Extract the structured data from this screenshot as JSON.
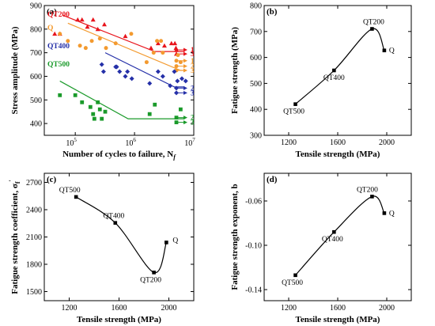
{
  "chart_data": [
    {
      "id": "a",
      "type": "scatter",
      "panel_label": "(a)",
      "xlabel": "Number of cycles to failure, N",
      "xlabel_sub": "f",
      "ylabel": "Stress amplitude (MPa)",
      "xscale": "log",
      "xlim": [
        30000,
        10000000
      ],
      "ylim": [
        350,
        900
      ],
      "xticks": [
        100000,
        1000000,
        10000000
      ],
      "xtick_labels": [
        {
          "base": "10",
          "exp": "5"
        },
        {
          "base": "10",
          "exp": "6"
        },
        {
          "base": "10",
          "exp": "7"
        }
      ],
      "yticks": [
        400,
        500,
        600,
        700,
        800,
        900
      ],
      "series": [
        {
          "name": "QT200",
          "color": "#e8141c",
          "marker": "triangle",
          "points": [
            [
              45000,
              780
            ],
            [
              55000,
              780
            ],
            [
              110000,
              840
            ],
            [
              130000,
              840
            ],
            [
              160000,
              810
            ],
            [
              200000,
              840
            ],
            [
              240000,
              800
            ],
            [
              310000,
              820
            ],
            [
              700000,
              770
            ],
            [
              2500000,
              740
            ],
            [
              3200000,
              730
            ],
            [
              4200000,
              740
            ],
            [
              4800000,
              740
            ],
            [
              5000000,
              720
            ],
            [
              1900000,
              720
            ]
          ],
          "fit": [
            [
              60000,
              860
            ],
            [
              2200000,
              705
            ],
            [
              7000000,
              705
            ]
          ],
          "runouts": [
            {
              "y": 712,
              "label": "1"
            },
            {
              "y": 695,
              "label": "3"
            }
          ]
        },
        {
          "name": "Q",
          "color": "#f39a2f",
          "marker": "circle",
          "points": [
            [
              55000,
              780
            ],
            [
              75000,
              750
            ],
            [
              120000,
              730
            ],
            [
              150000,
              720
            ],
            [
              190000,
              750
            ],
            [
              260000,
              760
            ],
            [
              330000,
              720
            ],
            [
              480000,
              740
            ],
            [
              880000,
              780
            ],
            [
              1600000,
              660
            ],
            [
              2100000,
              700
            ],
            [
              2400000,
              750
            ],
            [
              2800000,
              750
            ],
            [
              3000000,
              700
            ],
            [
              5400000,
              690
            ],
            [
              6000000,
              660
            ]
          ],
          "fit": [
            [
              75000,
              825
            ],
            [
              6000000,
              625
            ],
            [
              7000000,
              625
            ]
          ],
          "runouts": [
            {
              "y": 666,
              "label": "1"
            },
            {
              "y": 643,
              "label": "2"
            },
            {
              "y": 625,
              "label": "3"
            }
          ]
        },
        {
          "name": "QT400",
          "color": "#2530a8",
          "marker": "diamond",
          "points": [
            [
              280000,
              650
            ],
            [
              300000,
              620
            ],
            [
              480000,
              640
            ],
            [
              500000,
              640
            ],
            [
              560000,
              620
            ],
            [
              700000,
              600
            ],
            [
              760000,
              620
            ],
            [
              900000,
              590
            ],
            [
              1800000,
              570
            ],
            [
              2500000,
              620
            ],
            [
              3000000,
              600
            ],
            [
              4000000,
              560
            ],
            [
              4700000,
              620
            ],
            [
              5300000,
              580
            ],
            [
              6300000,
              590
            ],
            [
              7300000,
              580
            ]
          ],
          "fit": [
            [
              320000,
              700
            ],
            [
              4700000,
              555
            ],
            [
              7000000,
              555
            ]
          ],
          "runouts": [
            {
              "y": 550,
              "label": "2"
            },
            {
              "y": 530,
              "label": "3"
            }
          ]
        },
        {
          "name": "QT500",
          "color": "#1a9a2a",
          "marker": "square",
          "points": [
            [
              55000,
              520
            ],
            [
              100000,
              520
            ],
            [
              130000,
              490
            ],
            [
              180000,
              470
            ],
            [
              200000,
              440
            ],
            [
              210000,
              420
            ],
            [
              240000,
              490
            ],
            [
              260000,
              460
            ],
            [
              280000,
              420
            ],
            [
              320000,
              450
            ],
            [
              1800000,
              440
            ],
            [
              2200000,
              480
            ],
            [
              6000000,
              460
            ]
          ],
          "fit": [
            [
              55000,
              580
            ],
            [
              780000,
              420
            ],
            [
              7000000,
              420
            ]
          ],
          "runouts": [
            {
              "y": 425,
              "label": "2"
            },
            {
              "y": 405,
              "label": "3"
            }
          ]
        }
      ]
    },
    {
      "id": "b",
      "type": "line",
      "panel_label": "(b)",
      "xlabel": "Tensile strength (MPa)",
      "ylabel": "Fatigue strength (MPa)",
      "xlim": [
        1000,
        2200
      ],
      "ylim": [
        300,
        800
      ],
      "xticks": [
        1200,
        1600,
        2000
      ],
      "yticks": [
        300,
        400,
        500,
        600,
        700,
        800
      ],
      "points": [
        {
          "label": "QT500",
          "x": 1255,
          "y": 420
        },
        {
          "label": "QT400",
          "x": 1570,
          "y": 550
        },
        {
          "label": "QT200",
          "x": 1880,
          "y": 710
        },
        {
          "label": "Q",
          "x": 1980,
          "y": 627
        }
      ]
    },
    {
      "id": "c",
      "type": "line",
      "panel_label": "(c)",
      "xlabel": "Tensile strength (MPa)",
      "ylabel": "Fatigue strength coefficient, σ",
      "ylabel_sub": "f",
      "ylabel_prime": "′",
      "xlim": [
        1000,
        2200
      ],
      "ylim": [
        1400,
        2800
      ],
      "xticks": [
        1200,
        1600,
        2000
      ],
      "yticks": [
        1500,
        1800,
        2100,
        2400,
        2700
      ],
      "points": [
        {
          "label": "QT500",
          "x": 1255,
          "y": 2540
        },
        {
          "label": "QT400",
          "x": 1570,
          "y": 2255
        },
        {
          "label": "QT200",
          "x": 1880,
          "y": 1710
        },
        {
          "label": "Q",
          "x": 1980,
          "y": 2040
        }
      ]
    },
    {
      "id": "d",
      "type": "line",
      "panel_label": "(d)",
      "xlabel": "Tensile strength (MPa)",
      "ylabel": "Fatigue strength exponent, b",
      "xlim": [
        1000,
        2200
      ],
      "ylim": [
        -0.15,
        -0.035
      ],
      "xticks": [
        1200,
        1600,
        2000
      ],
      "yticks": [
        -0.14,
        -0.1,
        -0.06
      ],
      "ytick_labels": [
        "-0.14",
        "-0.10",
        "-0.06"
      ],
      "points": [
        {
          "label": "QT500",
          "x": 1255,
          "y": -0.127
        },
        {
          "label": "QT400",
          "x": 1570,
          "y": -0.088
        },
        {
          "label": "QT200",
          "x": 1880,
          "y": -0.056
        },
        {
          "label": "Q",
          "x": 1980,
          "y": -0.071
        }
      ]
    }
  ]
}
